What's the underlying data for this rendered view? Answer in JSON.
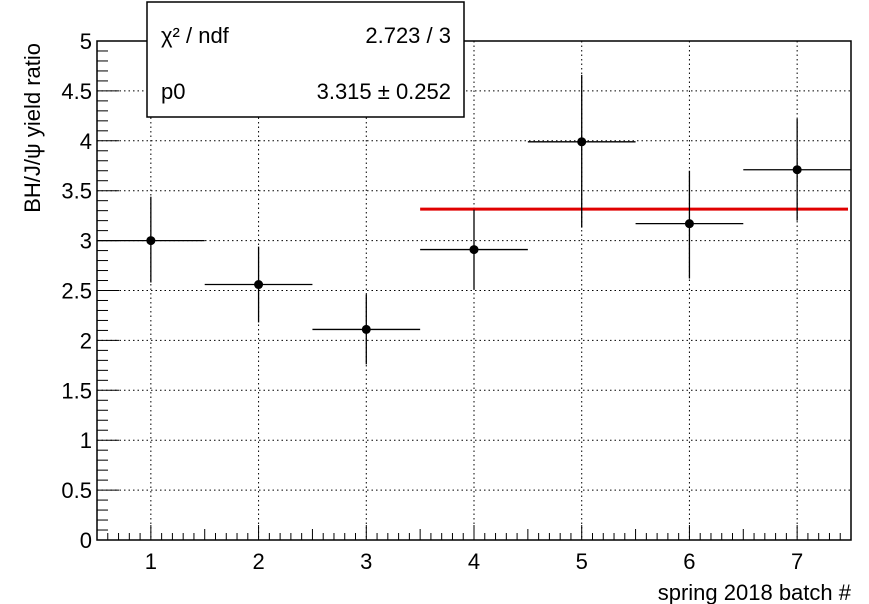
{
  "chart_data": {
    "type": "scatter",
    "title": "",
    "xlabel": "spring 2018 batch #",
    "ylabel": "BH/J/ψ yield ratio",
    "xlim": [
      0.5,
      7.5
    ],
    "ylim": [
      0,
      5
    ],
    "xticks": [
      "1",
      "2",
      "3",
      "4",
      "5",
      "6",
      "7"
    ],
    "yticks": [
      "0",
      "0.5",
      "1",
      "1.5",
      "2",
      "2.5",
      "3",
      "3.5",
      "4",
      "4.5",
      "5"
    ],
    "grid": true,
    "series": [
      {
        "x": [
          1,
          2,
          3,
          4,
          5,
          6,
          7
        ],
        "x_err": [
          0.5,
          0.5,
          0.5,
          0.5,
          0.5,
          0.5,
          0.5
        ],
        "y": [
          3.0,
          2.56,
          2.11,
          2.91,
          3.99,
          3.17,
          3.71
        ],
        "y_err_low": [
          0.42,
          0.38,
          0.35,
          0.4,
          0.86,
          0.55,
          0.51
        ],
        "y_err_high": [
          0.44,
          0.38,
          0.35,
          0.4,
          0.67,
          0.53,
          0.51
        ]
      }
    ],
    "fit": {
      "x_range": [
        3.5,
        7.5
      ],
      "value": 3.315,
      "color": "#e00000"
    },
    "stats_box": {
      "row1_label": "χ² / ndf",
      "row1_value": "2.723 / 3",
      "row2_label": "p0",
      "row2_value": "3.315 ± 0.252"
    }
  }
}
